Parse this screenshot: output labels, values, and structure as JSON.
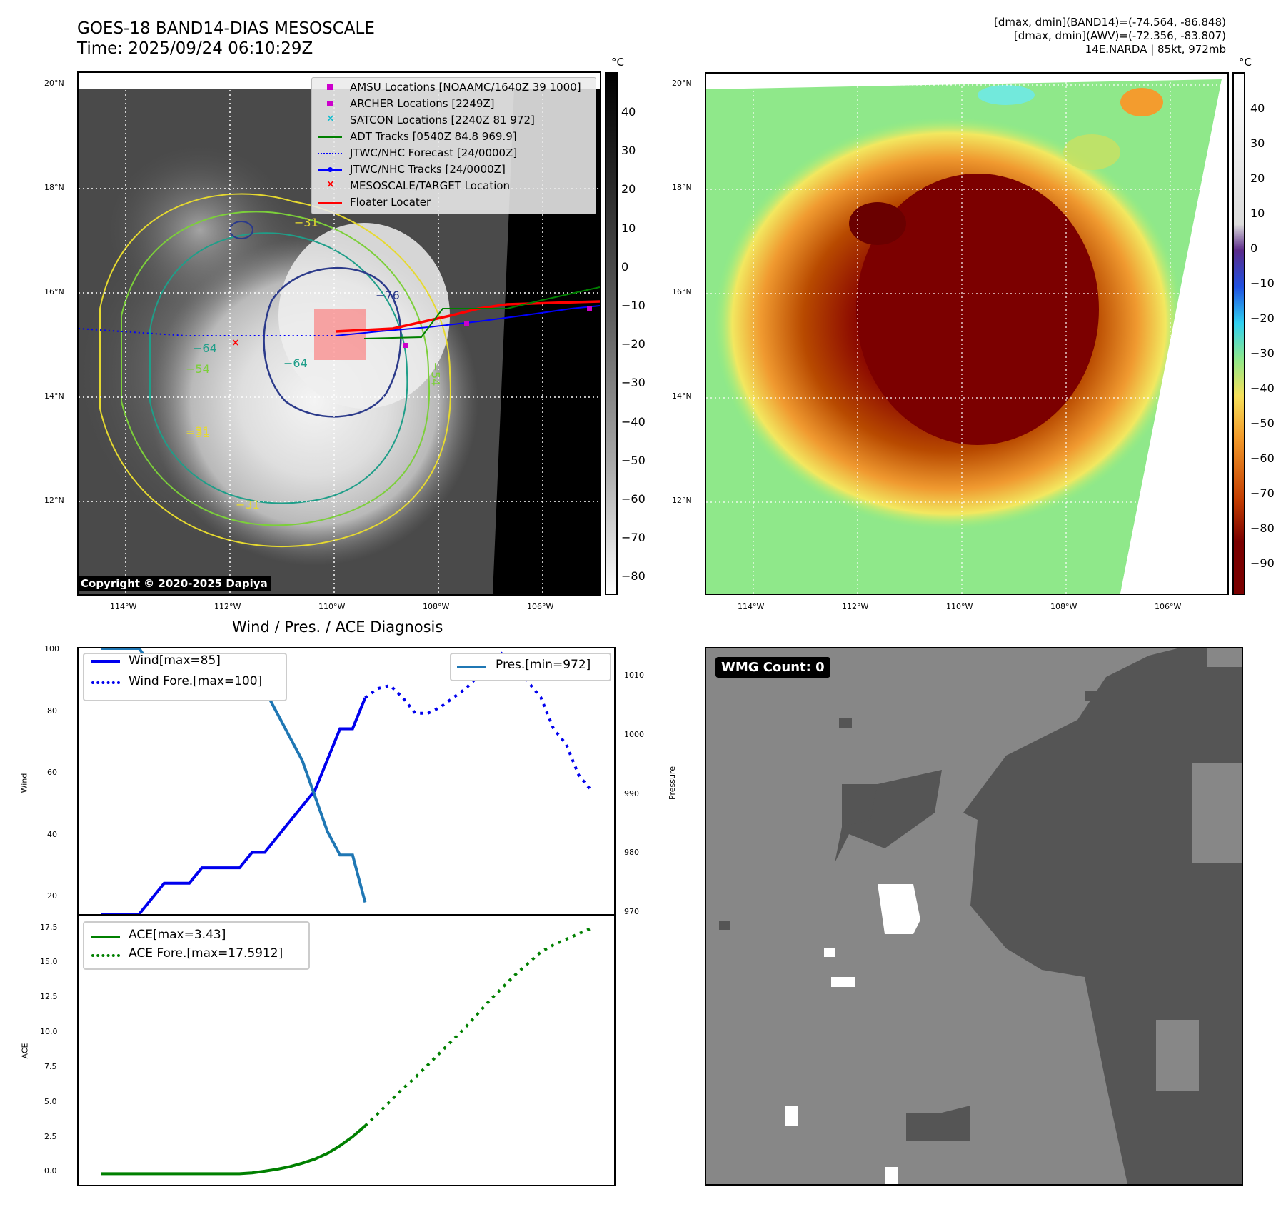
{
  "header": {
    "title_line1": "GOES-18 BAND14-DIAS MESOSCALE",
    "title_line2": "Time: 2025/09/24 06:10:29Z",
    "info_line1": "[dmax, dmin](BAND14)=(-74.564, -86.848)",
    "info_line2": "[dmax, dmin](AWV)=(-72.356, -83.807)",
    "info_line3": "14E.NARDA | 85kt, 972mb"
  },
  "map_axes": {
    "lat_ticks": [
      "20°N",
      "18°N",
      "16°N",
      "14°N",
      "12°N"
    ],
    "lon_ticks": [
      "114°W",
      "112°W",
      "110°W",
      "108°W",
      "106°W"
    ]
  },
  "colorbar_gray": {
    "unit": "°C",
    "ticks": [
      "40",
      "30",
      "20",
      "10",
      "0",
      "−10",
      "−20",
      "−30",
      "−40",
      "−50",
      "−60",
      "−70",
      "−80"
    ]
  },
  "colorbar_color": {
    "unit": "°C",
    "ticks": [
      "40",
      "30",
      "20",
      "10",
      "0",
      "−10",
      "−20",
      "−30",
      "−40",
      "−50",
      "−60",
      "−70",
      "−80",
      "−90"
    ]
  },
  "map_legend": [
    {
      "label": "AMSU Locations [NOAAMC/1640Z 39 1000]",
      "color": "#cc00cc",
      "symbol": "square"
    },
    {
      "label": "ARCHER Locations [2249Z]",
      "color": "#cc00cc",
      "symbol": "square"
    },
    {
      "label": "SATCON Locations [2240Z 81 972]",
      "color": "#17becf",
      "symbol": "x"
    },
    {
      "label": "ADT Tracks [0540Z 84.8 969.9]",
      "color": "#008000",
      "symbol": "line"
    },
    {
      "label": "JTWC/NHC Forecast [24/0000Z]",
      "color": "#0000ff",
      "symbol": "dotted"
    },
    {
      "label": "JTWC/NHC Tracks [24/0000Z]",
      "color": "#0000ff",
      "symbol": "line-dot"
    },
    {
      "label": "MESOSCALE/TARGET Location",
      "color": "#ff0000",
      "symbol": "x"
    },
    {
      "label": "Floater Locater",
      "color": "#ff0000",
      "symbol": "line"
    }
  ],
  "contour_labels": [
    "−76",
    "−64",
    "−54",
    "−31",
    "−31",
    "−64",
    "−54",
    "−31",
    "−31"
  ],
  "copyright": "Copyright © 2020-2025 Dapiya",
  "diagnosis_title": "Wind / Pres. / ACE Diagnosis",
  "wmg_label": "WMG Count: 0",
  "chart_data": [
    {
      "type": "line",
      "title": "Wind / Pres. / ACE Diagnosis",
      "ylabel": "Wind",
      "ylabel_right": "Pressure",
      "ylim": [
        15,
        101
      ],
      "ylim_right": [
        970,
        1015
      ],
      "yticks": [
        20,
        40,
        60,
        80,
        100
      ],
      "yticks_right": [
        970,
        980,
        990,
        1000,
        1010
      ],
      "series": [
        {
          "name": "Wind[max=85]",
          "style": "solid",
          "color": "#0000ee",
          "axis": "left",
          "x": [
            0,
            1,
            2,
            3,
            4,
            5,
            6,
            7,
            8,
            9,
            10,
            11,
            12,
            13,
            14,
            15,
            16,
            17,
            18,
            19,
            20,
            21
          ],
          "values": [
            15,
            15,
            15,
            15,
            20,
            25,
            25,
            25,
            30,
            30,
            30,
            30,
            35,
            35,
            40,
            45,
            50,
            55,
            65,
            75,
            75,
            85
          ]
        },
        {
          "name": "Wind Fore.[max=100]",
          "style": "dotted",
          "color": "#0000ee",
          "axis": "left",
          "x": [
            21,
            22,
            23,
            24,
            25,
            26,
            27,
            28,
            29,
            30,
            31,
            32,
            33,
            34,
            35,
            36,
            37,
            38,
            39
          ],
          "values": [
            85,
            88,
            89,
            85,
            80,
            80,
            82,
            85,
            88,
            92,
            95,
            100,
            95,
            90,
            85,
            75,
            70,
            60,
            55
          ]
        },
        {
          "name": "Pres.[min=972]",
          "style": "solid",
          "color": "#1f77b4",
          "axis": "right",
          "x": [
            0,
            1,
            2,
            3,
            4,
            5,
            6,
            7,
            8,
            9,
            10,
            11,
            12,
            13,
            14,
            15,
            16,
            17,
            18,
            19,
            20,
            21
          ],
          "values": [
            1015,
            1015,
            1015,
            1015,
            1012,
            1010,
            1010,
            1010,
            1010,
            1010,
            1010,
            1010,
            1008,
            1008,
            1004,
            1000,
            996,
            990,
            984,
            980,
            980,
            972
          ]
        }
      ]
    },
    {
      "type": "line",
      "ylabel": "ACE",
      "ylim": [
        -0.8,
        18.5
      ],
      "yticks": [
        0.0,
        2.5,
        5.0,
        7.5,
        10.0,
        12.5,
        15.0,
        17.5
      ],
      "ytick_labels": [
        "0.0",
        "2.5",
        "5.0",
        "7.5",
        "10.0",
        "12.5",
        "15.0",
        "17.5"
      ],
      "series": [
        {
          "name": "ACE[max=3.43]",
          "style": "solid",
          "color": "#008000",
          "x": [
            0,
            1,
            2,
            3,
            4,
            5,
            6,
            7,
            8,
            9,
            10,
            11,
            12,
            13,
            14,
            15,
            16,
            17,
            18,
            19,
            20,
            21
          ],
          "values": [
            0,
            0,
            0,
            0,
            0,
            0,
            0,
            0,
            0,
            0,
            0,
            0,
            0.06,
            0.18,
            0.32,
            0.5,
            0.75,
            1.05,
            1.45,
            2.0,
            2.65,
            3.43
          ]
        },
        {
          "name": "ACE Fore.[max=17.5912]",
          "style": "dotted",
          "color": "#008000",
          "x": [
            21,
            22,
            23,
            24,
            25,
            26,
            27,
            28,
            29,
            30,
            31,
            32,
            33,
            34,
            35,
            36,
            37,
            38,
            39
          ],
          "values": [
            3.43,
            4.3,
            5.2,
            6.1,
            6.9,
            7.8,
            8.7,
            9.6,
            10.5,
            11.5,
            12.5,
            13.4,
            14.3,
            15.1,
            15.9,
            16.4,
            16.8,
            17.2,
            17.5912
          ]
        }
      ]
    }
  ]
}
